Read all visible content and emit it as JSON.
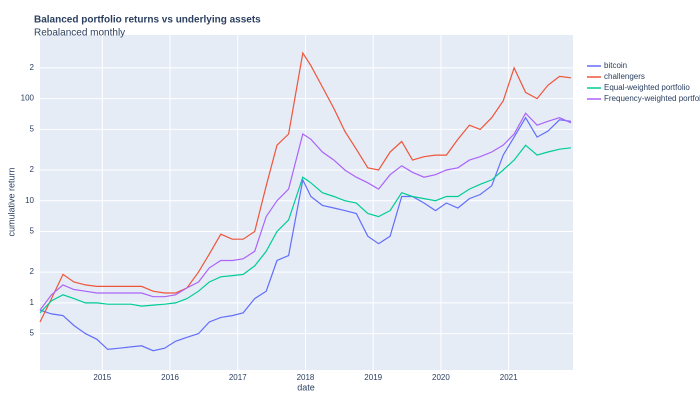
{
  "chart_data": {
    "type": "line",
    "title": "Balanced portfolio returns vs underlying assets",
    "subtitle": "Rebalanced monthly",
    "x_label": "date",
    "y_label": "cumulative return",
    "log_y": true,
    "grid": true,
    "legend": "right",
    "x": [
      2014.08,
      2014.25,
      2014.42,
      2014.58,
      2014.75,
      2014.92,
      2015.08,
      2015.25,
      2015.42,
      2015.58,
      2015.75,
      2015.92,
      2016.08,
      2016.25,
      2016.42,
      2016.58,
      2016.75,
      2016.92,
      2017.08,
      2017.25,
      2017.42,
      2017.58,
      2017.75,
      2017.96,
      2018.08,
      2018.25,
      2018.42,
      2018.58,
      2018.75,
      2018.92,
      2019.08,
      2019.25,
      2019.42,
      2019.58,
      2019.75,
      2019.92,
      2020.08,
      2020.25,
      2020.42,
      2020.58,
      2020.75,
      2020.92,
      2021.08,
      2021.25,
      2021.42,
      2021.58,
      2021.75,
      2021.92
    ],
    "series": [
      {
        "name": "bitcoin",
        "color": "#636efa",
        "values": [
          0.85,
          0.78,
          0.75,
          0.6,
          0.5,
          0.44,
          0.35,
          0.36,
          0.37,
          0.38,
          0.34,
          0.36,
          0.42,
          0.46,
          0.5,
          0.65,
          0.72,
          0.75,
          0.8,
          1.1,
          1.3,
          2.6,
          2.9,
          16,
          11,
          9,
          8.5,
          8,
          7.5,
          4.5,
          3.8,
          4.5,
          11,
          11,
          9.5,
          8,
          9.5,
          8.5,
          10.5,
          11.5,
          14,
          28,
          42,
          65,
          42,
          48,
          62,
          60
        ]
      },
      {
        "name": "challengers",
        "color": "#EF553B",
        "values": [
          0.65,
          1.1,
          1.9,
          1.6,
          1.5,
          1.45,
          1.45,
          1.45,
          1.45,
          1.45,
          1.3,
          1.25,
          1.25,
          1.4,
          2.0,
          3.0,
          4.7,
          4.2,
          4.2,
          5,
          14,
          35,
          45,
          280,
          210,
          130,
          80,
          48,
          32,
          21,
          20,
          30,
          38,
          25,
          27,
          28,
          28,
          40,
          55,
          50,
          65,
          95,
          200,
          115,
          100,
          135,
          165,
          160
        ]
      },
      {
        "name": "Equal-weighted portfolio",
        "color": "#00cc96",
        "values": [
          0.8,
          1.05,
          1.2,
          1.1,
          1.0,
          1.0,
          0.97,
          0.97,
          0.97,
          0.93,
          0.95,
          0.97,
          1.0,
          1.1,
          1.3,
          1.6,
          1.8,
          1.85,
          1.9,
          2.3,
          3.2,
          5.0,
          6.5,
          17,
          15,
          12,
          11,
          10,
          9.5,
          7.5,
          7,
          8,
          12,
          11,
          10.5,
          10,
          11,
          11,
          13,
          14.5,
          16,
          20,
          25,
          35,
          28,
          30,
          32,
          33
        ]
      },
      {
        "name": "Frequency-weighted portfolio",
        "color": "#ab63fa",
        "values": [
          0.85,
          1.2,
          1.5,
          1.35,
          1.3,
          1.25,
          1.25,
          1.25,
          1.25,
          1.25,
          1.15,
          1.15,
          1.2,
          1.4,
          1.6,
          2.2,
          2.6,
          2.6,
          2.7,
          3.2,
          7,
          10,
          13,
          45,
          40,
          30,
          25,
          20,
          17,
          15,
          13,
          18,
          22,
          19,
          17,
          18,
          20,
          21,
          25,
          27,
          30,
          35,
          45,
          72,
          55,
          60,
          65,
          58
        ]
      }
    ],
    "xlim": [
      2014.08,
      2021.95
    ],
    "xticks": [
      2015,
      2016,
      2017,
      2018,
      2019,
      2020,
      2021
    ],
    "ylim": [
      0.22,
      420
    ],
    "yticks": [
      {
        "value": 0.5,
        "label": "5"
      },
      1,
      2,
      5,
      10,
      {
        "value": 20,
        "label": "2"
      },
      {
        "value": 50,
        "label": "5"
      },
      100,
      {
        "value": 200,
        "label": "2"
      }
    ]
  }
}
